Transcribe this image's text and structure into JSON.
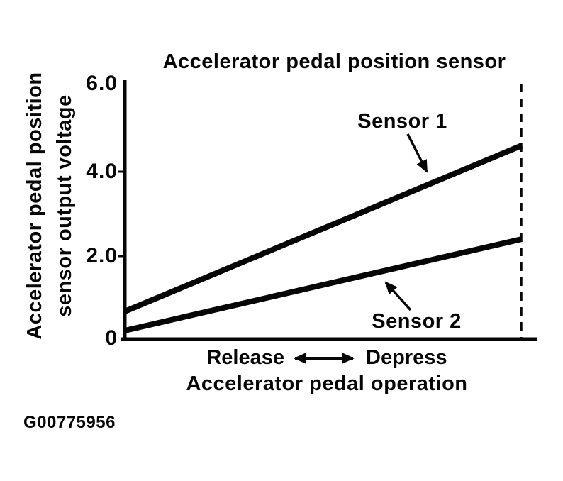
{
  "figure": {
    "code": "G00775956"
  },
  "chart_data": {
    "type": "line",
    "title": "Accelerator pedal position sensor",
    "ylabel": "Accelerator pedal position sensor output voltage",
    "ylabel_line1": "Accelerator pedal position",
    "ylabel_line2": "sensor output voltage",
    "xlabel": "Accelerator pedal operation",
    "x_direction": {
      "left_label": "Release",
      "right_label": "Depress"
    },
    "x": [
      "Release (pedal released)",
      "Depress (pedal fully depressed)"
    ],
    "yticks": [
      "6.0",
      "4.0",
      "2.0",
      "0"
    ],
    "ylim": [
      0,
      6.0
    ],
    "grid": false,
    "legend": "inline-annotations",
    "line_color": "#060606",
    "series": [
      {
        "name": "Sensor 1",
        "values_v": [
          0.65,
          4.55
        ]
      },
      {
        "name": "Sensor 2",
        "values_v": [
          0.2,
          2.35
        ]
      }
    ]
  }
}
